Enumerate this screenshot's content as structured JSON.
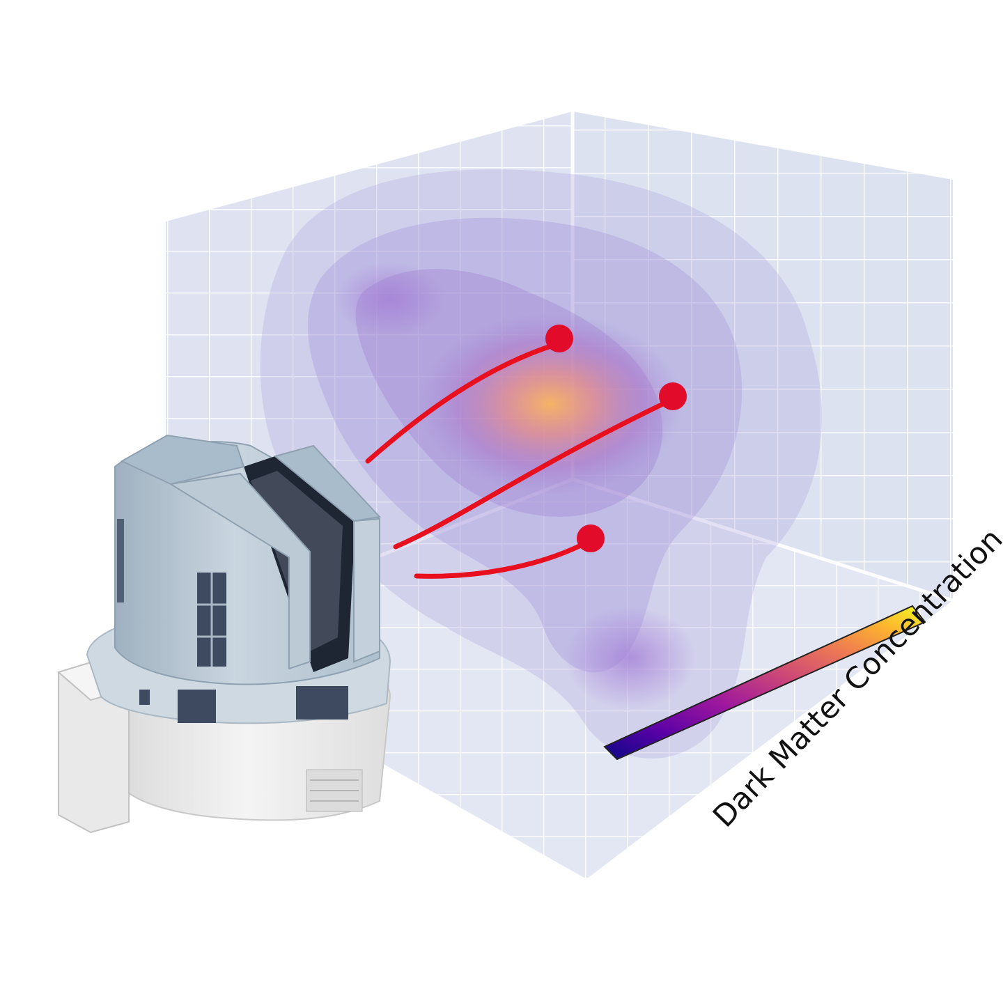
{
  "colorbar": {
    "label": "Dark Matter Concentration",
    "stops": [
      "#0d0887",
      "#5c01a6",
      "#9c179e",
      "#cc4778",
      "#ed7953",
      "#fdb42f",
      "#f0f921"
    ]
  },
  "colors": {
    "panel": "#dde2f0",
    "grid": "#ffffff",
    "cloud": "#9b8fd6",
    "core": "#f6a35a",
    "sightline": "#e8101f",
    "building_wall": "#b7c6d3",
    "building_roof": "#a9bccb",
    "building_base": "#eeeeee",
    "window": "#3d4a60"
  },
  "sightlines": [
    "sightline-upper",
    "sightline-middle",
    "sightline-lower"
  ]
}
